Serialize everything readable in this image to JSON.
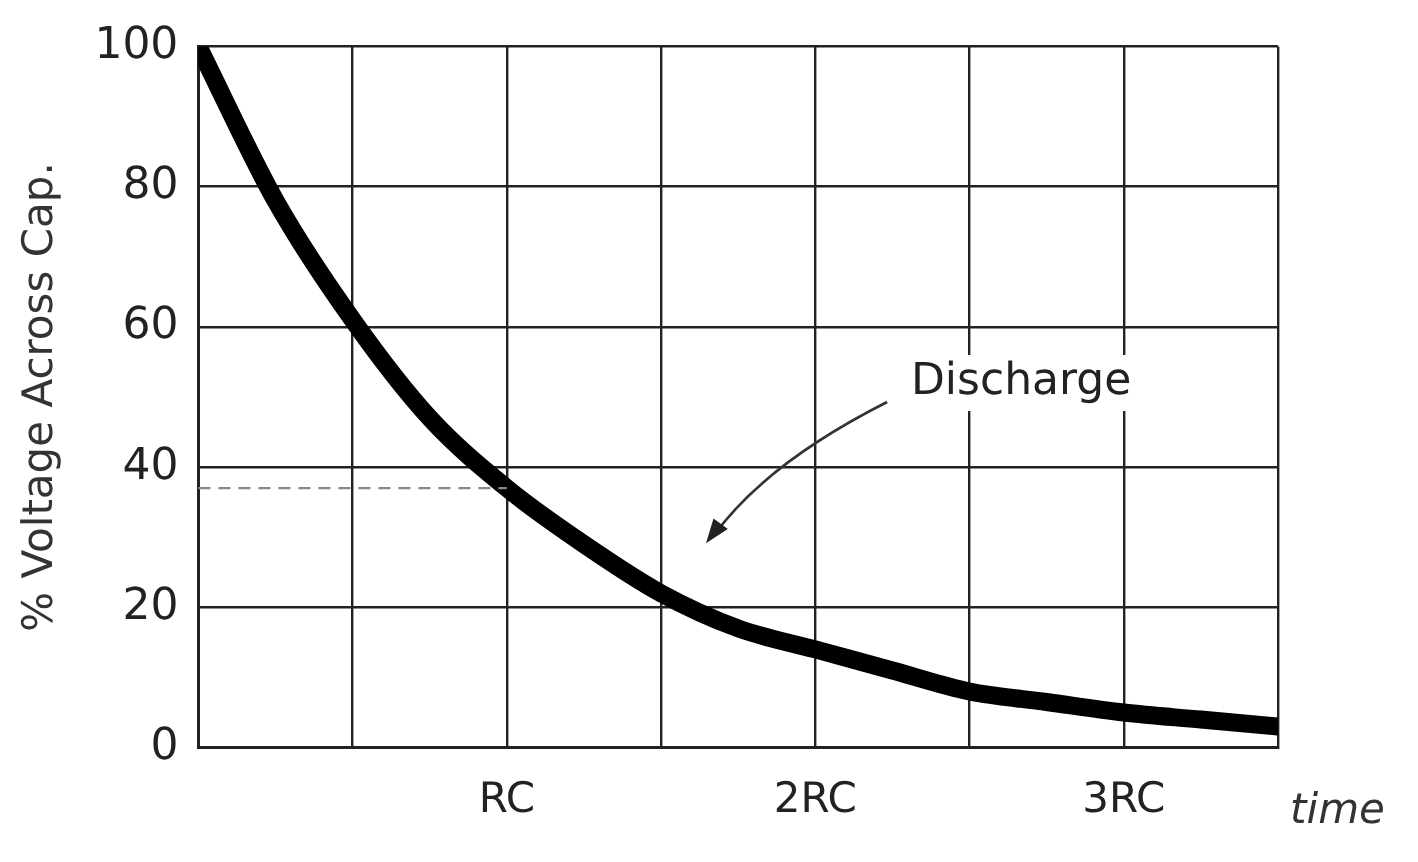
{
  "chart_data": {
    "type": "line",
    "ylabel": "% Voltage Across Cap.",
    "xlabel": "time",
    "x": [
      0,
      0.25,
      0.5,
      0.75,
      1,
      1.25,
      1.5,
      1.75,
      2,
      2.25,
      2.5,
      2.75,
      3,
      3.25,
      3.5
    ],
    "series": [
      {
        "color": "#000000",
        "values": [
          100,
          78,
          61,
          47,
          37,
          29,
          22,
          17,
          14,
          11,
          8,
          6.5,
          5,
          4,
          3
        ]
      }
    ],
    "xlim": [
      0,
      3.5
    ],
    "xticks": [
      {
        "value": 0,
        "label": null
      },
      {
        "value": 0.5,
        "label": null
      },
      {
        "value": 1,
        "label": "RC"
      },
      {
        "value": 1.5,
        "label": null
      },
      {
        "value": 2,
        "label": "2RC"
      },
      {
        "value": 2.5,
        "label": null
      },
      {
        "value": 3,
        "label": "3RC"
      },
      {
        "value": 3.5,
        "label": null
      }
    ],
    "ylim": [
      0,
      100
    ],
    "yticks": [
      0,
      20,
      40,
      60,
      80,
      100
    ],
    "grid": true,
    "marker": "none",
    "line_style": "solid",
    "ref_lines": [
      {
        "axis": "y",
        "value": 37,
        "color": "#888888",
        "line_style": "dashed"
      }
    ],
    "annotations": [
      "Discharge"
    ]
  }
}
